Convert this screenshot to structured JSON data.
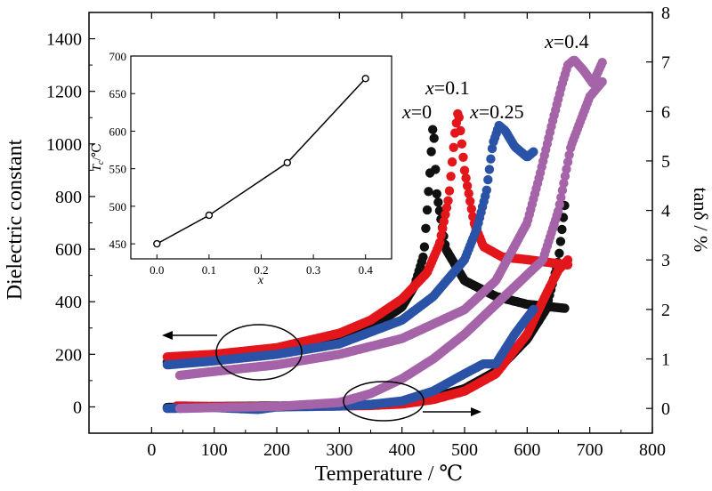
{
  "chart_data": [
    {
      "type": "scatter",
      "xlabel": "Temperature / ℃",
      "ylabel_left": "Dielectric constant",
      "ylabel_right": "tanδ / %",
      "xlim": [
        -100,
        800
      ],
      "ylim_left": [
        -100,
        1500
      ],
      "ylim_right": [
        -0.5,
        8
      ],
      "x_ticks": [
        0,
        100,
        200,
        300,
        400,
        500,
        600,
        700,
        800
      ],
      "y_left_ticks": [
        0,
        200,
        400,
        600,
        800,
        1000,
        1200,
        1400
      ],
      "y_right_ticks": [
        0,
        1,
        2,
        3,
        4,
        5,
        6,
        7,
        8
      ],
      "series": [
        {
          "name": "x=0",
          "color": "#111111",
          "dielectric": {
            "x": [
              25,
              100,
              200,
              300,
              350,
              400,
              420,
              435,
              445,
              450,
              455,
              470,
              500,
              550,
              600,
              660
            ],
            "y": [
              170,
              180,
              205,
              255,
              300,
              380,
              460,
              580,
              900,
              1090,
              820,
              600,
              480,
              420,
              390,
              375
            ]
          },
          "tan_delta": {
            "x": [
              25,
              100,
              200,
              300,
              350,
              400,
              450,
              500,
              550,
              600,
              630,
              650,
              660
            ],
            "y": [
              0.02,
              0.04,
              0.05,
              0.06,
              0.08,
              0.12,
              0.22,
              0.4,
              0.75,
              1.4,
              2.0,
              3.0,
              4.1
            ]
          }
        },
        {
          "name": "x=0.1",
          "color": "#e3161b",
          "dielectric": {
            "x": [
              25,
              100,
              200,
              300,
              350,
              400,
              440,
              460,
              475,
              485,
              490,
              500,
              515,
              530,
              560,
              600,
              665
            ],
            "y": [
              190,
              200,
              225,
              280,
              330,
              410,
              510,
              620,
              800,
              1050,
              1130,
              900,
              700,
              610,
              570,
              560,
              540
            ]
          },
          "tan_delta": {
            "x": [
              40,
              100,
              200,
              300,
              350,
              400,
              450,
              500,
              550,
              600,
              630,
              650,
              665
            ],
            "y": [
              0.05,
              0.04,
              0.04,
              0.05,
              0.06,
              0.09,
              0.18,
              0.35,
              0.7,
              1.5,
              2.3,
              2.8,
              3.0
            ]
          }
        },
        {
          "name": "x=0.25",
          "color": "#2a52a6",
          "dielectric": {
            "x": [
              25,
              100,
              200,
              300,
              400,
              450,
              500,
              520,
              535,
              545,
              555,
              565,
              580,
              600,
              610
            ],
            "y": [
              160,
              175,
              200,
              240,
              330,
              420,
              560,
              680,
              820,
              1000,
              1070,
              1050,
              990,
              950,
              970
            ]
          },
          "tan_delta": {
            "x": [
              25,
              100,
              170,
              200,
              300,
              350,
              400,
              450,
              500,
              530,
              550,
              560,
              580,
              610
            ],
            "y": [
              0.0,
              0.02,
              -0.02,
              0.03,
              0.05,
              0.08,
              0.15,
              0.35,
              0.7,
              0.9,
              0.9,
              1.1,
              1.5,
              2.0
            ]
          }
        },
        {
          "name": "x=0.4",
          "color": "#a563a8",
          "dielectric": {
            "x": [
              45,
              100,
              200,
              300,
              400,
              500,
              550,
              600,
              620,
              640,
              655,
              665,
              675,
              690,
              705,
              720
            ],
            "y": [
              120,
              135,
              160,
              200,
              260,
              370,
              480,
              700,
              880,
              1080,
              1220,
              1300,
              1320,
              1280,
              1230,
              1310
            ]
          },
          "tan_delta": {
            "x": [
              45,
              100,
              200,
              300,
              350,
              400,
              450,
              500,
              550,
              600,
              625,
              650,
              670,
              700,
              720
            ],
            "y": [
              0.0,
              0.02,
              0.04,
              0.12,
              0.3,
              0.6,
              1.0,
              1.5,
              2.1,
              2.7,
              3.0,
              4.0,
              5.3,
              6.3,
              6.6
            ]
          }
        }
      ],
      "series_labels": [
        {
          "var": "x",
          "text": "=0"
        },
        {
          "var": "x",
          "text": "=0.1"
        },
        {
          "var": "x",
          "text": "=0.25"
        },
        {
          "var": "x",
          "text": "=0.4"
        }
      ]
    },
    {
      "type": "line",
      "xlabel": "x",
      "ylabel_main": "T",
      "ylabel_sub": "c",
      "ylabel_unit": "/℃",
      "xlim": [
        -0.05,
        0.45
      ],
      "ylim": [
        430,
        700
      ],
      "x_ticks": [
        "0.0",
        "0.1",
        "0.2",
        "0.3",
        "0.4"
      ],
      "y_ticks": [
        "450",
        "500",
        "550",
        "600",
        "650",
        "700"
      ],
      "x": [
        0.0,
        0.1,
        0.25,
        0.4
      ],
      "y": [
        450,
        488,
        558,
        670
      ]
    }
  ]
}
